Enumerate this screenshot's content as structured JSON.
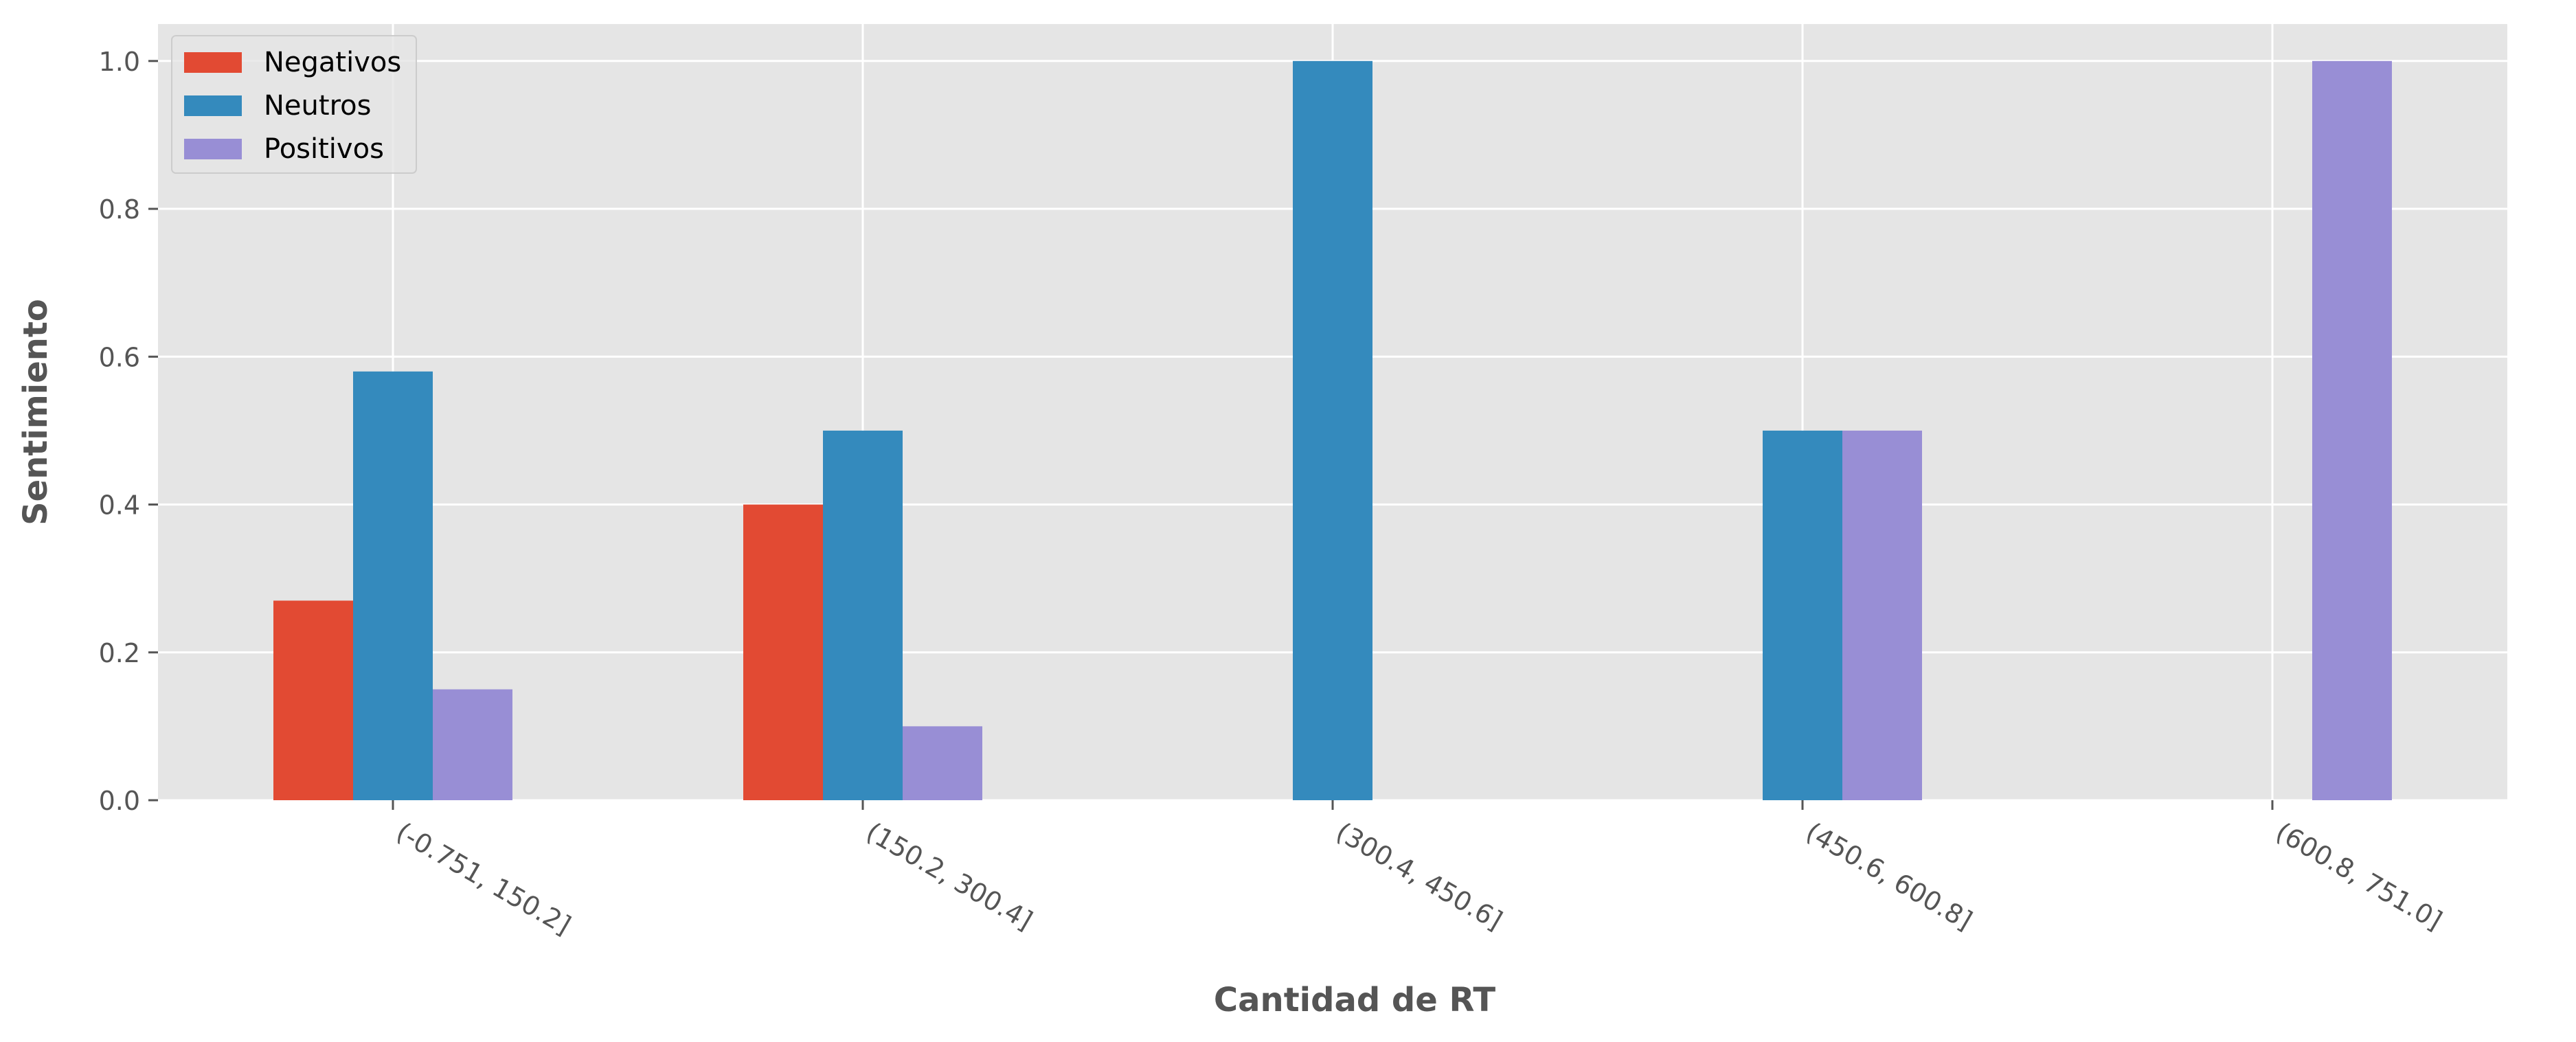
{
  "chart_data": {
    "type": "bar",
    "title": "",
    "xlabel": "Cantidad de RT",
    "ylabel": "Sentimiento",
    "categories": [
      "(-0.751, 150.2]",
      "(150.2, 300.4]",
      "(300.4, 450.6]",
      "(450.6, 600.8]",
      "(600.8, 751.0]"
    ],
    "series": [
      {
        "name": "Negativos",
        "values": [
          0.27,
          0.4,
          0,
          0,
          0
        ]
      },
      {
        "name": "Neutros",
        "values": [
          0.58,
          0.5,
          1.0,
          0.5,
          0
        ]
      },
      {
        "name": "Positivos",
        "values": [
          0.15,
          0.1,
          0,
          0.5,
          1.0
        ]
      }
    ],
    "ylim": [
      0,
      1.05
    ],
    "yticks": [
      "0.0",
      "0.2",
      "0.4",
      "0.6",
      "0.8",
      "1.0"
    ],
    "grid": true,
    "legend_position": "upper-left",
    "colors": {
      "Negativos": "#E24A33",
      "Neutros": "#348ABD",
      "Positivos": "#988ED5",
      "plot_background": "#E5E5E5",
      "grid": "#FFFFFF",
      "text": "#555555"
    }
  }
}
